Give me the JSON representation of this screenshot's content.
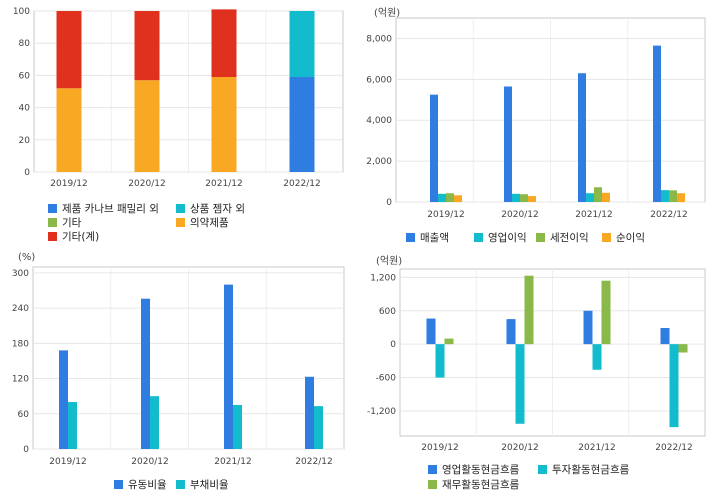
{
  "chart_data": [
    {
      "id": "c1",
      "type": "bar",
      "stacked": true,
      "categories": [
        "2019/12",
        "2020/12",
        "2021/12",
        "2022/12"
      ],
      "ylim": [
        0,
        100
      ],
      "yticks": [
        "0",
        "20",
        "40",
        "60",
        "80",
        "100"
      ],
      "unit": "",
      "grid": true,
      "legend_position": "bottom",
      "series": [
        {
          "name": "제품 카나브 패밀리 외",
          "color": "#2f7de0",
          "values": [
            0,
            0,
            0,
            59
          ]
        },
        {
          "name": "상품 젬자 외",
          "color": "#12bccd",
          "values": [
            0,
            0,
            0,
            41
          ]
        },
        {
          "name": "기타",
          "color": "#8ab94a",
          "values": [
            0,
            0,
            0,
            0
          ]
        },
        {
          "name": "의약제품",
          "color": "#f8a823",
          "values": [
            52,
            57,
            59,
            0
          ]
        },
        {
          "name": "기타(계)",
          "color": "#e0301e",
          "values": [
            48,
            43,
            42,
            0
          ]
        }
      ]
    },
    {
      "id": "c2",
      "type": "bar",
      "categories": [
        "2019/12",
        "2020/12",
        "2021/12",
        "2022/12"
      ],
      "ylim": [
        0,
        9000
      ],
      "yticks": [
        "0",
        "2,000",
        "4,000",
        "6,000",
        "8,000"
      ],
      "unit": "(억원)",
      "grid": true,
      "legend_position": "bottom",
      "series": [
        {
          "name": "매출액",
          "color": "#2f7de0",
          "values": [
            5250,
            5650,
            6300,
            7650
          ]
        },
        {
          "name": "영업이익",
          "color": "#12bccd",
          "values": [
            400,
            400,
            430,
            580
          ]
        },
        {
          "name": "세전이익",
          "color": "#8ab94a",
          "values": [
            430,
            380,
            720,
            570
          ]
        },
        {
          "name": "순이익",
          "color": "#f8a823",
          "values": [
            330,
            290,
            450,
            430
          ]
        }
      ]
    },
    {
      "id": "c3",
      "type": "bar",
      "categories": [
        "2019/12",
        "2020/12",
        "2021/12",
        "2022/12"
      ],
      "ylim": [
        0,
        310
      ],
      "yticks": [
        "0",
        "60",
        "120",
        "180",
        "240",
        "300"
      ],
      "unit": "(%)",
      "grid": true,
      "legend_position": "bottom",
      "series": [
        {
          "name": "유동비율",
          "color": "#2f7de0",
          "values": [
            168,
            256,
            280,
            123
          ]
        },
        {
          "name": "부채비율",
          "color": "#12bccd",
          "values": [
            80,
            90,
            75,
            73
          ]
        }
      ]
    },
    {
      "id": "c4",
      "type": "bar",
      "categories": [
        "2019/12",
        "2020/12",
        "2021/12",
        "2022/12"
      ],
      "ylim": [
        -1650,
        1350
      ],
      "yticks": [
        "-1,200",
        "-600",
        "0",
        "600",
        "1,200"
      ],
      "unit": "(억원)",
      "grid": true,
      "legend_position": "bottom",
      "series": [
        {
          "name": "영업활동현금흐름",
          "color": "#2f7de0",
          "values": [
            460,
            450,
            600,
            290
          ]
        },
        {
          "name": "투자활동현금흐름",
          "color": "#12bccd",
          "values": [
            -600,
            -1430,
            -460,
            -1490
          ]
        },
        {
          "name": "재무활동현금흐름",
          "color": "#8ab94a",
          "values": [
            100,
            1230,
            1140,
            -150
          ]
        }
      ]
    }
  ]
}
